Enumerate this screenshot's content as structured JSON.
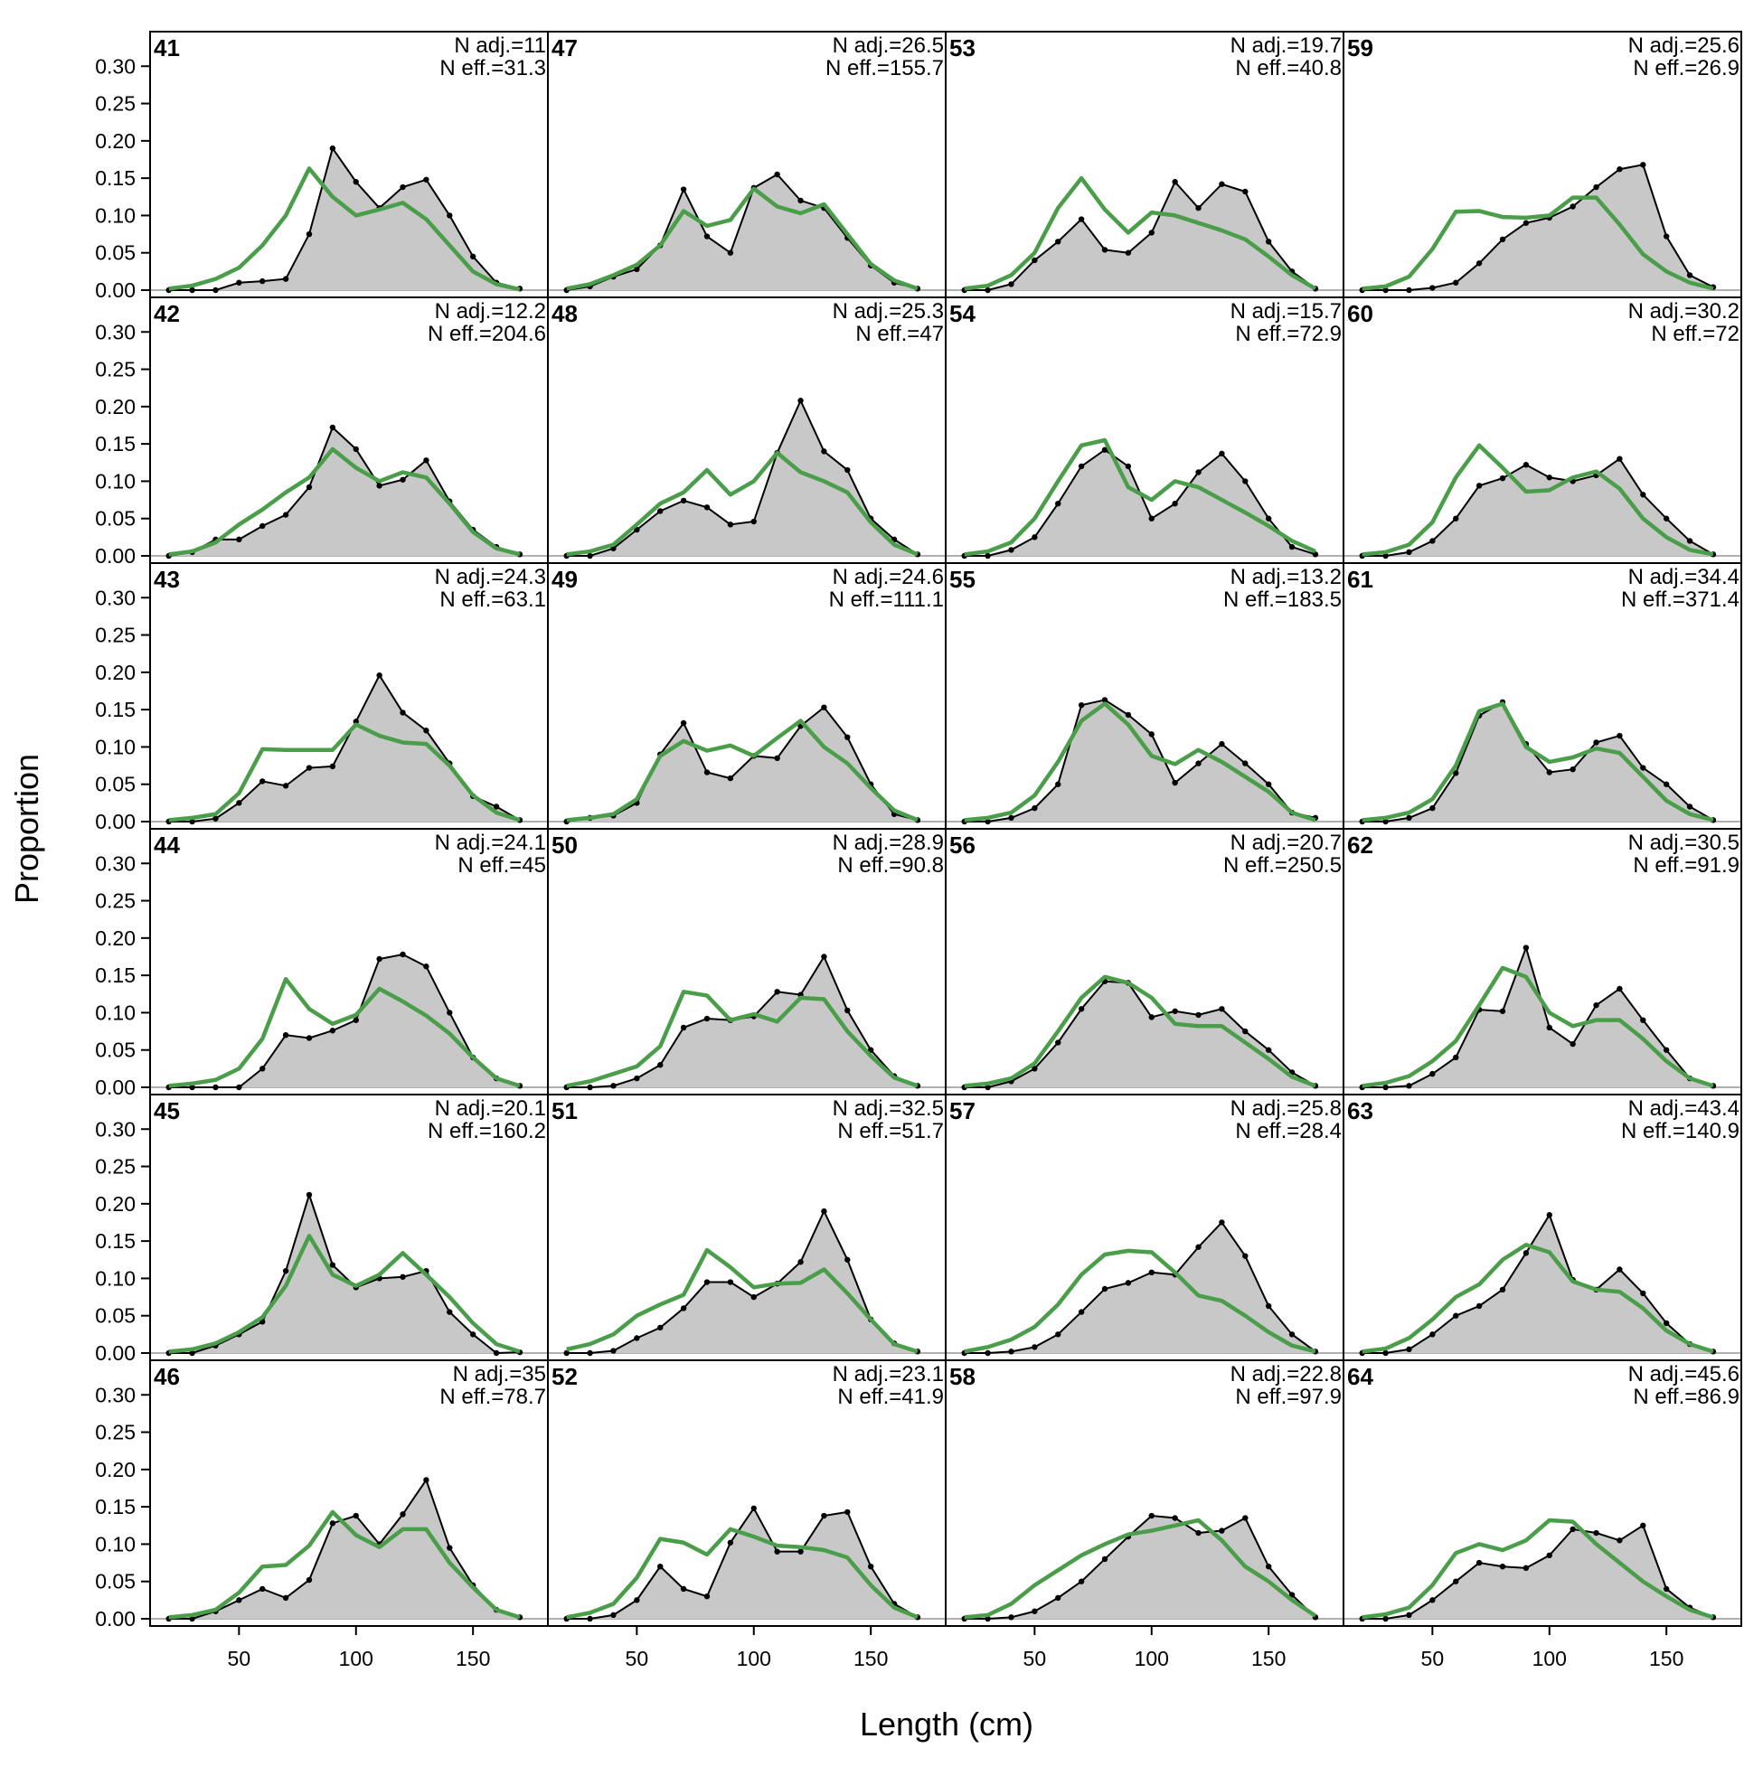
{
  "chart_data": {
    "type": "area",
    "xlabel": "Length (cm)",
    "ylabel": "Proportion",
    "xlim": [
      12,
      182
    ],
    "ylim": [
      0,
      0.31
    ],
    "x_ticks": [
      50,
      100,
      150
    ],
    "x_tick_labels": [
      "50",
      "100",
      "150"
    ],
    "y_ticks": [
      0,
      0.05,
      0.1,
      0.15,
      0.2,
      0.25,
      0.3
    ],
    "y_tick_labels": [
      "0.00",
      "0.05",
      "0.10",
      "0.15",
      "0.20",
      "0.25",
      "0.30"
    ],
    "x": [
      20,
      30,
      40,
      50,
      60,
      70,
      80,
      90,
      100,
      110,
      120,
      130,
      140,
      150,
      160,
      170
    ],
    "grid": false,
    "legend": "none",
    "colors": {
      "observed_fill": "#c8c8c8",
      "observed_line": "#000000",
      "expected_line": "#4a9e4a",
      "zero_line": "#b0b0b0"
    },
    "panels": [
      {
        "label": "41",
        "n_adj": "N adj.=11",
        "n_eff": "N eff.=31.3",
        "observed": [
          0,
          0,
          0,
          0.01,
          0.012,
          0.015,
          0.075,
          0.19,
          0.145,
          0.11,
          0.138,
          0.148,
          0.1,
          0.045,
          0.01,
          0.002
        ],
        "expected": [
          0.002,
          0.006,
          0.015,
          0.03,
          0.06,
          0.1,
          0.163,
          0.125,
          0.1,
          0.108,
          0.117,
          0.095,
          0.06,
          0.025,
          0.008,
          0.001
        ]
      },
      {
        "label": "42",
        "n_adj": "N adj.=12.2",
        "n_eff": "N eff.=204.6",
        "observed": [
          0,
          0.005,
          0.022,
          0.022,
          0.04,
          0.055,
          0.092,
          0.172,
          0.143,
          0.094,
          0.102,
          0.128,
          0.073,
          0.035,
          0.012,
          0.002
        ],
        "expected": [
          0.002,
          0.006,
          0.018,
          0.042,
          0.062,
          0.085,
          0.105,
          0.143,
          0.118,
          0.1,
          0.112,
          0.105,
          0.07,
          0.032,
          0.01,
          0.002
        ]
      },
      {
        "label": "43",
        "n_adj": "N adj.=24.3",
        "n_eff": "N eff.=63.1",
        "observed": [
          0,
          0,
          0.004,
          0.025,
          0.054,
          0.048,
          0.072,
          0.074,
          0.134,
          0.196,
          0.146,
          0.122,
          0.078,
          0.034,
          0.02,
          0.002
        ],
        "expected": [
          0.002,
          0.005,
          0.01,
          0.038,
          0.097,
          0.096,
          0.096,
          0.096,
          0.13,
          0.115,
          0.106,
          0.104,
          0.075,
          0.035,
          0.012,
          0.002
        ]
      },
      {
        "label": "44",
        "n_adj": "N adj.=24.1",
        "n_eff": "N eff.=45",
        "observed": [
          0,
          0,
          0,
          0,
          0.025,
          0.07,
          0.066,
          0.076,
          0.09,
          0.172,
          0.178,
          0.162,
          0.1,
          0.04,
          0.012,
          0.002
        ],
        "expected": [
          0.002,
          0.005,
          0.01,
          0.025,
          0.065,
          0.145,
          0.105,
          0.085,
          0.097,
          0.132,
          0.115,
          0.096,
          0.072,
          0.04,
          0.012,
          0.002
        ]
      },
      {
        "label": "45",
        "n_adj": "N adj.=20.1",
        "n_eff": "N eff.=160.2",
        "observed": [
          0,
          0,
          0.01,
          0.025,
          0.042,
          0.11,
          0.212,
          0.118,
          0.088,
          0.1,
          0.102,
          0.11,
          0.055,
          0.025,
          0,
          0.001
        ],
        "expected": [
          0.002,
          0.005,
          0.013,
          0.028,
          0.048,
          0.09,
          0.157,
          0.105,
          0.09,
          0.105,
          0.134,
          0.105,
          0.075,
          0.04,
          0.012,
          0.002
        ]
      },
      {
        "label": "46",
        "n_adj": "N adj.=35",
        "n_eff": "N eff.=78.7",
        "observed": [
          0,
          0,
          0.01,
          0.025,
          0.04,
          0.028,
          0.052,
          0.128,
          0.138,
          0.1,
          0.14,
          0.186,
          0.095,
          0.045,
          0.012,
          0.002
        ],
        "expected": [
          0.002,
          0.005,
          0.012,
          0.035,
          0.07,
          0.072,
          0.098,
          0.143,
          0.112,
          0.096,
          0.12,
          0.12,
          0.075,
          0.042,
          0.012,
          0.002
        ]
      },
      {
        "label": "47",
        "n_adj": "N adj.=26.5",
        "n_eff": "N eff.=155.7",
        "observed": [
          0,
          0.005,
          0.018,
          0.028,
          0.06,
          0.135,
          0.072,
          0.05,
          0.137,
          0.155,
          0.12,
          0.11,
          0.07,
          0.033,
          0.01,
          0.002
        ],
        "expected": [
          0.002,
          0.008,
          0.02,
          0.034,
          0.06,
          0.106,
          0.086,
          0.094,
          0.136,
          0.112,
          0.103,
          0.115,
          0.075,
          0.035,
          0.013,
          0.002
        ]
      },
      {
        "label": "48",
        "n_adj": "N adj.=25.3",
        "n_eff": "N eff.=47",
        "observed": [
          0,
          0,
          0.01,
          0.035,
          0.06,
          0.074,
          0.065,
          0.042,
          0.046,
          0.138,
          0.208,
          0.14,
          0.115,
          0.05,
          0.022,
          0.002
        ],
        "expected": [
          0.002,
          0.006,
          0.015,
          0.042,
          0.07,
          0.085,
          0.115,
          0.082,
          0.1,
          0.138,
          0.112,
          0.1,
          0.085,
          0.045,
          0.015,
          0.002
        ]
      },
      {
        "label": "49",
        "n_adj": "N adj.=24.6",
        "n_eff": "N eff.=111.1",
        "observed": [
          0,
          0.005,
          0.008,
          0.025,
          0.09,
          0.132,
          0.066,
          0.058,
          0.088,
          0.085,
          0.128,
          0.153,
          0.113,
          0.05,
          0.01,
          0.002
        ],
        "expected": [
          0.002,
          0.005,
          0.01,
          0.03,
          0.088,
          0.108,
          0.095,
          0.102,
          0.088,
          0.112,
          0.135,
          0.1,
          0.078,
          0.045,
          0.015,
          0.002
        ]
      },
      {
        "label": "50",
        "n_adj": "N adj.=28.9",
        "n_eff": "N eff.=90.8",
        "observed": [
          0,
          0,
          0.002,
          0.012,
          0.03,
          0.08,
          0.092,
          0.09,
          0.095,
          0.128,
          0.124,
          0.175,
          0.103,
          0.05,
          0.015,
          0.002
        ],
        "expected": [
          0.002,
          0.008,
          0.018,
          0.028,
          0.055,
          0.128,
          0.123,
          0.09,
          0.098,
          0.088,
          0.12,
          0.118,
          0.075,
          0.042,
          0.013,
          0.002
        ]
      },
      {
        "label": "51",
        "n_adj": "N adj.=32.5",
        "n_eff": "N eff.=51.7",
        "observed": [
          0,
          0,
          0.003,
          0.02,
          0.034,
          0.06,
          0.095,
          0.095,
          0.075,
          0.093,
          0.122,
          0.19,
          0.125,
          0.045,
          0.013,
          0.002
        ],
        "expected": [
          0.005,
          0.012,
          0.025,
          0.05,
          0.065,
          0.078,
          0.138,
          0.115,
          0.088,
          0.093,
          0.094,
          0.112,
          0.08,
          0.045,
          0.012,
          0.002
        ]
      },
      {
        "label": "52",
        "n_adj": "N adj.=23.1",
        "n_eff": "N eff.=41.9",
        "observed": [
          0,
          0,
          0.005,
          0.025,
          0.07,
          0.04,
          0.03,
          0.102,
          0.148,
          0.09,
          0.09,
          0.138,
          0.143,
          0.07,
          0.02,
          0.002
        ],
        "expected": [
          0.002,
          0.008,
          0.02,
          0.055,
          0.107,
          0.102,
          0.086,
          0.12,
          0.11,
          0.098,
          0.096,
          0.092,
          0.082,
          0.045,
          0.015,
          0.002
        ]
      },
      {
        "label": "53",
        "n_adj": "N adj.=19.7",
        "n_eff": "N eff.=40.8",
        "observed": [
          0,
          0,
          0.008,
          0.04,
          0.065,
          0.095,
          0.054,
          0.05,
          0.077,
          0.145,
          0.11,
          0.142,
          0.132,
          0.065,
          0.025,
          0.002
        ],
        "expected": [
          0.002,
          0.006,
          0.02,
          0.05,
          0.11,
          0.15,
          0.108,
          0.077,
          0.104,
          0.1,
          0.09,
          0.08,
          0.068,
          0.045,
          0.02,
          0.002
        ]
      },
      {
        "label": "54",
        "n_adj": "N adj.=15.7",
        "n_eff": "N eff.=72.9",
        "observed": [
          0,
          0,
          0.008,
          0.025,
          0.07,
          0.12,
          0.142,
          0.12,
          0.05,
          0.07,
          0.112,
          0.137,
          0.1,
          0.05,
          0.012,
          0.002
        ],
        "expected": [
          0.002,
          0.006,
          0.018,
          0.05,
          0.1,
          0.148,
          0.155,
          0.092,
          0.075,
          0.1,
          0.092,
          0.075,
          0.058,
          0.04,
          0.02,
          0.006
        ]
      },
      {
        "label": "55",
        "n_adj": "N adj.=13.2",
        "n_eff": "N eff.=183.5",
        "observed": [
          0,
          0,
          0.005,
          0.018,
          0.05,
          0.156,
          0.163,
          0.143,
          0.117,
          0.052,
          0.078,
          0.104,
          0.078,
          0.05,
          0.012,
          0.005
        ],
        "expected": [
          0.002,
          0.005,
          0.012,
          0.035,
          0.08,
          0.135,
          0.158,
          0.13,
          0.088,
          0.077,
          0.096,
          0.08,
          0.06,
          0.04,
          0.012,
          0.002
        ]
      },
      {
        "label": "56",
        "n_adj": "N adj.=20.7",
        "n_eff": "N eff.=250.5",
        "observed": [
          0,
          0,
          0.008,
          0.025,
          0.06,
          0.105,
          0.142,
          0.14,
          0.094,
          0.102,
          0.097,
          0.105,
          0.075,
          0.05,
          0.02,
          0.002
        ],
        "expected": [
          0.002,
          0.005,
          0.012,
          0.032,
          0.075,
          0.12,
          0.148,
          0.14,
          0.12,
          0.085,
          0.082,
          0.082,
          0.06,
          0.038,
          0.014,
          0.002
        ]
      },
      {
        "label": "57",
        "n_adj": "N adj.=25.8",
        "n_eff": "N eff.=28.4",
        "observed": [
          0,
          0,
          0.002,
          0.008,
          0.025,
          0.055,
          0.086,
          0.094,
          0.108,
          0.105,
          0.142,
          0.175,
          0.13,
          0.063,
          0.025,
          0.002
        ],
        "expected": [
          0.002,
          0.008,
          0.018,
          0.035,
          0.065,
          0.105,
          0.132,
          0.137,
          0.135,
          0.108,
          0.077,
          0.07,
          0.05,
          0.028,
          0.01,
          0.002
        ]
      },
      {
        "label": "58",
        "n_adj": "N adj.=22.8",
        "n_eff": "N eff.=97.9",
        "observed": [
          0,
          0,
          0.002,
          0.01,
          0.028,
          0.05,
          0.08,
          0.11,
          0.138,
          0.135,
          0.115,
          0.118,
          0.135,
          0.07,
          0.032,
          0.002
        ],
        "expected": [
          0.002,
          0.005,
          0.02,
          0.045,
          0.065,
          0.085,
          0.1,
          0.113,
          0.118,
          0.125,
          0.132,
          0.105,
          0.07,
          0.05,
          0.025,
          0.004
        ]
      },
      {
        "label": "59",
        "n_adj": "N adj.=25.6",
        "n_eff": "N eff.=26.9",
        "observed": [
          0,
          0,
          0,
          0.003,
          0.01,
          0.036,
          0.068,
          0.09,
          0.097,
          0.112,
          0.138,
          0.162,
          0.168,
          0.072,
          0.02,
          0.004
        ],
        "expected": [
          0.002,
          0.005,
          0.018,
          0.055,
          0.105,
          0.106,
          0.098,
          0.097,
          0.1,
          0.124,
          0.124,
          0.088,
          0.048,
          0.025,
          0.01,
          0.002
        ]
      },
      {
        "label": "60",
        "n_adj": "N adj.=30.2",
        "n_eff": "N eff.=72",
        "observed": [
          0,
          0,
          0.005,
          0.02,
          0.05,
          0.094,
          0.104,
          0.122,
          0.105,
          0.1,
          0.108,
          0.13,
          0.082,
          0.05,
          0.02,
          0.002
        ],
        "expected": [
          0.002,
          0.005,
          0.015,
          0.045,
          0.105,
          0.148,
          0.118,
          0.086,
          0.088,
          0.105,
          0.113,
          0.09,
          0.05,
          0.025,
          0.008,
          0.002
        ]
      },
      {
        "label": "61",
        "n_adj": "N adj.=34.4",
        "n_eff": "N eff.=371.4",
        "observed": [
          0,
          0,
          0.005,
          0.018,
          0.065,
          0.142,
          0.16,
          0.104,
          0.066,
          0.07,
          0.106,
          0.115,
          0.072,
          0.05,
          0.02,
          0.002
        ],
        "expected": [
          0.002,
          0.005,
          0.012,
          0.03,
          0.075,
          0.148,
          0.158,
          0.1,
          0.08,
          0.086,
          0.098,
          0.092,
          0.06,
          0.028,
          0.01,
          0.002
        ]
      },
      {
        "label": "62",
        "n_adj": "N adj.=30.5",
        "n_eff": "N eff.=91.9",
        "observed": [
          0,
          0,
          0.002,
          0.018,
          0.04,
          0.104,
          0.102,
          0.187,
          0.08,
          0.058,
          0.11,
          0.132,
          0.09,
          0.05,
          0.012,
          0.002
        ],
        "expected": [
          0.002,
          0.006,
          0.015,
          0.035,
          0.062,
          0.11,
          0.16,
          0.148,
          0.1,
          0.082,
          0.09,
          0.09,
          0.065,
          0.035,
          0.012,
          0.002
        ]
      },
      {
        "label": "63",
        "n_adj": "N adj.=43.4",
        "n_eff": "N eff.=140.9",
        "observed": [
          0,
          0,
          0.005,
          0.025,
          0.05,
          0.063,
          0.085,
          0.134,
          0.185,
          0.098,
          0.085,
          0.112,
          0.08,
          0.04,
          0.012,
          0.002
        ],
        "expected": [
          0.002,
          0.006,
          0.02,
          0.045,
          0.075,
          0.092,
          0.125,
          0.145,
          0.135,
          0.096,
          0.085,
          0.082,
          0.06,
          0.03,
          0.012,
          0.002
        ]
      },
      {
        "label": "64",
        "n_adj": "N adj.=45.6",
        "n_eff": "N eff.=86.9",
        "observed": [
          0,
          0,
          0.005,
          0.025,
          0.05,
          0.075,
          0.07,
          0.068,
          0.085,
          0.12,
          0.115,
          0.105,
          0.125,
          0.04,
          0.015,
          0.002
        ],
        "expected": [
          0.002,
          0.006,
          0.015,
          0.045,
          0.088,
          0.1,
          0.092,
          0.105,
          0.132,
          0.13,
          0.1,
          0.075,
          0.05,
          0.03,
          0.012,
          0.002
        ]
      }
    ]
  }
}
